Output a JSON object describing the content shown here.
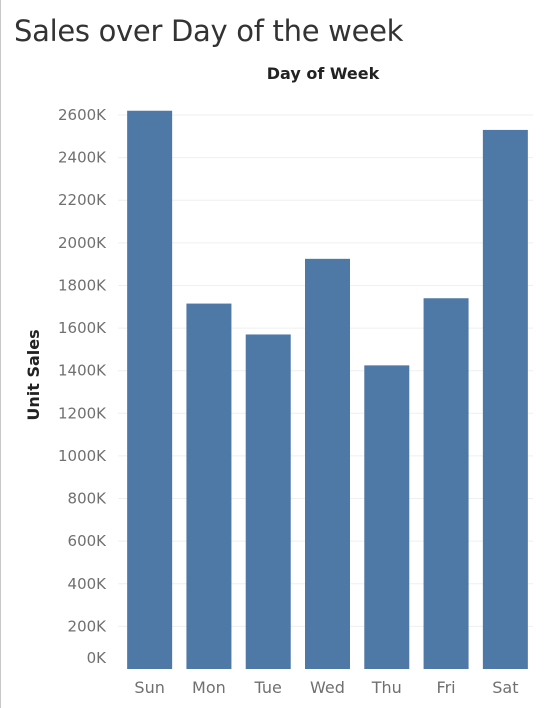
{
  "chart_title": "Sales over Day of the week",
  "colors": {
    "bar": "#4e79a7",
    "grid": "#efefef",
    "title": "#333333"
  },
  "chart_data": {
    "type": "bar",
    "title": "Sales over Day of the week",
    "xlabel": "Day of Week",
    "ylabel": "Unit Sales",
    "categories": [
      "Sun",
      "Mon",
      "Tue",
      "Wed",
      "Thu",
      "Fri",
      "Sat"
    ],
    "values": [
      2620,
      1715,
      1570,
      1925,
      1425,
      1740,
      2530
    ],
    "value_unit": "K",
    "ylim": [
      0,
      2600
    ],
    "yticks": [
      "0K",
      "200K",
      "400K",
      "600K",
      "800K",
      "1000K",
      "1200K",
      "1400K",
      "1600K",
      "1800K",
      "2000K",
      "2200K",
      "2400K",
      "2600K"
    ],
    "grid": true,
    "legend": "none"
  }
}
